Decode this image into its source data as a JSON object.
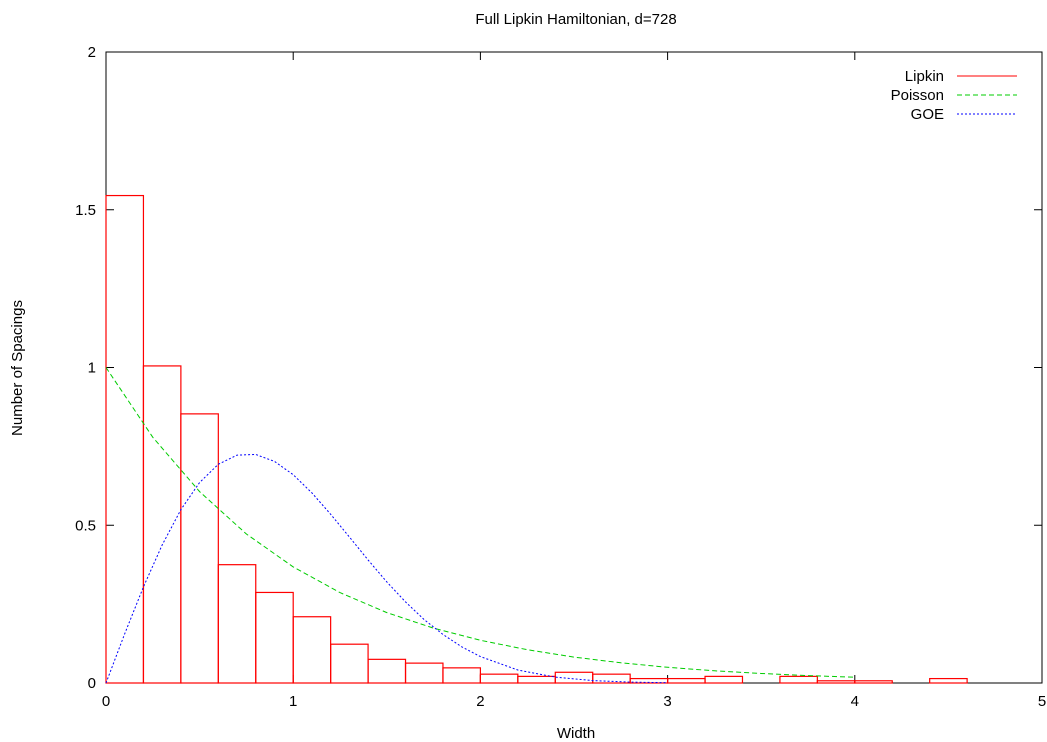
{
  "chart_data": {
    "type": "bar",
    "title": "Full Lipkin Hamiltonian, d=728",
    "xlabel": "Width",
    "ylabel": "Number of Spacings",
    "xlim": [
      0,
      5
    ],
    "ylim": [
      0,
      2
    ],
    "x_ticks": [
      "0",
      "1",
      "2",
      "3",
      "4",
      "5"
    ],
    "y_ticks": [
      "0",
      "0.5",
      "1",
      "1.5",
      "2"
    ],
    "grid": false,
    "legend_position": "top-right",
    "bin_width": 0.2,
    "histogram": {
      "name": "Lipkin",
      "color": "#ff0000",
      "bin_starts": [
        0,
        0.2,
        0.4,
        0.6,
        0.8,
        1.0,
        1.2,
        1.4,
        1.6,
        1.8,
        2.0,
        2.2,
        2.4,
        2.6,
        2.8,
        3.0,
        3.2,
        3.4,
        3.6,
        3.8,
        4.0,
        4.2,
        4.4
      ],
      "values": [
        1.545,
        1.005,
        0.853,
        0.375,
        0.287,
        0.21,
        0.123,
        0.075,
        0.063,
        0.048,
        0.028,
        0.021,
        0.034,
        0.028,
        0.014,
        0.014,
        0.021,
        0,
        0.021,
        0.007,
        0.007,
        0,
        0.014
      ]
    },
    "series": [
      {
        "name": "Poisson",
        "color": "#00cc00",
        "dash": "dashed",
        "x": [
          0,
          0.25,
          0.5,
          0.75,
          1,
          1.25,
          1.5,
          1.75,
          2,
          2.25,
          2.5,
          2.75,
          3,
          3.25,
          3.5,
          3.75,
          4
        ],
        "y": [
          1,
          0.7788,
          0.6065,
          0.4724,
          0.3679,
          0.2865,
          0.2231,
          0.1738,
          0.1353,
          0.1054,
          0.0821,
          0.0639,
          0.0498,
          0.0388,
          0.0302,
          0.0235,
          0.0183
        ]
      },
      {
        "name": "GOE",
        "color": "#0000ff",
        "dash": "dotted",
        "x": [
          0,
          0.1,
          0.2,
          0.3,
          0.4,
          0.5,
          0.6,
          0.7,
          0.8,
          0.9,
          1.0,
          1.1,
          1.2,
          1.3,
          1.4,
          1.5,
          1.6,
          1.7,
          1.8,
          1.9,
          2.0,
          2.2,
          2.4,
          2.6,
          2.8,
          3.0
        ],
        "y": [
          0,
          0.1559,
          0.3044,
          0.4377,
          0.5495,
          0.6354,
          0.6932,
          0.7224,
          0.7244,
          0.7024,
          0.6601,
          0.6025,
          0.535,
          0.4627,
          0.3898,
          0.3204,
          0.257,
          0.2011,
          0.1537,
          0.1147,
          0.0837,
          0.0413,
          0.0187,
          0.0077,
          0.0029,
          0.001
        ]
      }
    ]
  }
}
